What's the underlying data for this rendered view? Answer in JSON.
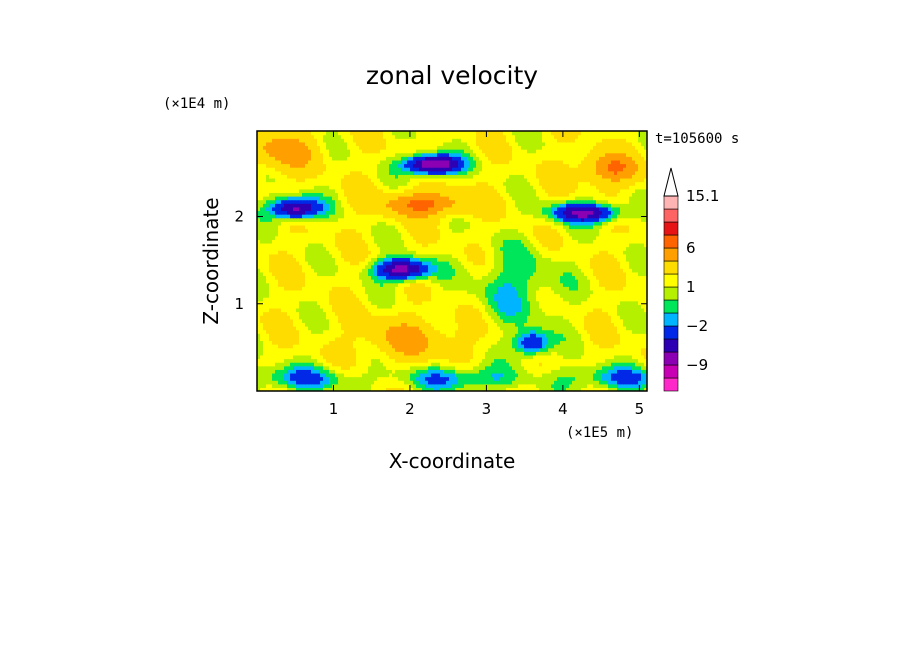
{
  "chart_data": {
    "type": "heatmap",
    "title": "zonal velocity",
    "xlabel": "X-coordinate",
    "ylabel": "Z-coordinate",
    "x_unit": "(×1E5 m)",
    "y_unit": "(×1E4 m)",
    "time_label": "t=105600 s",
    "xlim": [
      0,
      5.1
    ],
    "ylim": [
      0,
      2.98
    ],
    "x_ticks": [
      "1",
      "2",
      "3",
      "4",
      "5"
    ],
    "x_tick_values": [
      1,
      2,
      3,
      4,
      5
    ],
    "y_ticks": [
      "1",
      "2"
    ],
    "y_tick_values": [
      1,
      2
    ],
    "colorbar": {
      "levels": [
        -15,
        -12,
        -9,
        -6,
        -4,
        -2,
        -1,
        0,
        1,
        2,
        4,
        6,
        9,
        12,
        15.1
      ],
      "colors": [
        "#ff28c8",
        "#c800b4",
        "#8c00b4",
        "#2d00b4",
        "#0028e6",
        "#00b4ff",
        "#00e65a",
        "#b4f000",
        "#ffff00",
        "#ffdc00",
        "#ffa000",
        "#ff6400",
        "#e61414",
        "#ff6464",
        "#ffb4b4"
      ],
      "tick_labels": [
        "15.1",
        "6",
        "1",
        "−2",
        "−9"
      ],
      "tick_values": [
        15.1,
        6,
        1,
        -2,
        -9
      ]
    }
  }
}
